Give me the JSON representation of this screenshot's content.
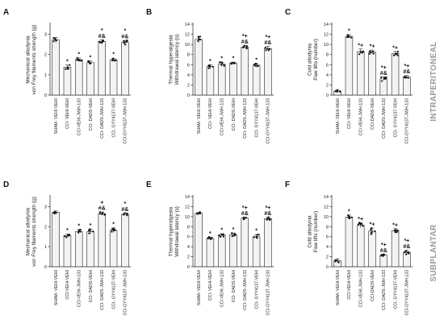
{
  "row_labels": [
    "INTRAPERITONEAL",
    "SUBPLANTAR"
  ],
  "chart_data": [
    {
      "panel": "A",
      "type": "bar",
      "ylabel": [
        "Mechanical allodynia",
        "von Frey filaments strength (g)"
      ],
      "ylim": [
        0,
        3.5
      ],
      "yticks": [
        0,
        1,
        2,
        3
      ],
      "categories": [
        "SHAM- VEHI-VEHI",
        "CCI- VEHI-VEHI",
        "CCI-VEHI-JWH-133",
        "CCI- DADS-VEHI",
        "CCI- DADS-JWH-133",
        "CCI- GYY4137-VEHI",
        "CCI-GYY4137-JWH-133"
      ],
      "values": [
        2.72,
        1.38,
        1.75,
        1.6,
        2.65,
        1.75,
        2.6
      ],
      "errors": [
        0.12,
        0.1,
        0.08,
        0.08,
        0.08,
        0.07,
        0.1
      ],
      "annotations": [
        "",
        "*",
        "*",
        "*",
        "* # &",
        "*",
        "* # &"
      ]
    },
    {
      "panel": "B",
      "type": "bar",
      "ylabel": [
        "Thermal hyperalgesia",
        "Withdrawal latency (s)"
      ],
      "ylim": [
        0,
        14
      ],
      "yticks": [
        0,
        2,
        4,
        6,
        8,
        10,
        12,
        14
      ],
      "categories": [
        "SHAM- VEHI-VEHI",
        "CCI- VEHI-VEHI",
        "CCI-VEHI-JWH-133",
        "CCI- DADS-VEHI",
        "CCI- DADS-JWH-133",
        "CCI- GYY4137-VEHI",
        "CCI-GYY4137-JWH-133"
      ],
      "values": [
        11.0,
        5.6,
        6.1,
        6.3,
        9.5,
        5.9,
        9.2
      ],
      "errors": [
        0.6,
        0.4,
        0.4,
        0.2,
        0.3,
        0.3,
        0.4
      ],
      "annotations": [
        "",
        "*",
        "*",
        "*",
        "*+ # &",
        "*",
        "*+ # &"
      ]
    },
    {
      "panel": "C",
      "type": "bar",
      "ylabel": [
        "Cold allodynia",
        "Paw lifts (number)"
      ],
      "ylim": [
        0,
        14
      ],
      "yticks": [
        0,
        2,
        4,
        6,
        8,
        10,
        12,
        14
      ],
      "categories": [
        "SHAM- VEHI-VEHI",
        "CCI- VEHI-VEHI",
        "CCI-VEHI-JWH-133",
        "CCI-DADS-VEHI",
        "CCI- DADS-JWH-133",
        "CCI- GYY4137-VEHI",
        "CCI-GYY4137-JWH-133"
      ],
      "values": [
        0.8,
        11.6,
        8.6,
        8.5,
        3.2,
        8.2,
        3.6
      ],
      "errors": [
        0.3,
        0.3,
        0.5,
        0.4,
        0.4,
        0.4,
        0.3
      ],
      "annotations": [
        "",
        "*",
        "*+",
        "*+",
        "*+ # &",
        "*+",
        "*+ # &"
      ]
    },
    {
      "panel": "D",
      "type": "bar",
      "ylabel": [
        "Mechanical allodynia",
        "von Frey filaments strength (g)"
      ],
      "ylim": [
        0,
        3.5
      ],
      "yticks": [
        0,
        1,
        2,
        3
      ],
      "categories": [
        "SHAM- VEHI-VEHI",
        "CCI-VEHI-VEHI",
        "CCI-VEHI-JWH-133",
        "CCI- DADS-VEHI",
        "CCI- DADS-JWH-133",
        "CCI- GYY4137-VEHI",
        "CCI-GYY4137-JWH-133"
      ],
      "values": [
        2.72,
        1.55,
        1.75,
        1.75,
        2.65,
        1.82,
        2.62
      ],
      "errors": [
        0.06,
        0.08,
        0.1,
        0.12,
        0.08,
        0.12,
        0.06
      ],
      "annotations": [
        "",
        "*",
        "*",
        "*",
        "+ # &",
        "*",
        "* # &"
      ]
    },
    {
      "panel": "E",
      "type": "bar",
      "ylabel": [
        "Thermal hyperalgesia",
        "Withdrawal latency (s)"
      ],
      "ylim": [
        0,
        14
      ],
      "yticks": [
        0,
        2,
        4,
        6,
        8,
        10,
        12,
        14
      ],
      "categories": [
        "SHAM- VEHI-VEHI",
        "CCI- VEHI-VEHI",
        "CCI-VEHI-JWH-133",
        "CCI- DADS-VEHI",
        "CCI- DADS-JWH-133",
        "CCI- GYY4137-VEHI",
        "CCI-GYY4137-JWH-133"
      ],
      "values": [
        10.7,
        5.6,
        6.3,
        6.4,
        9.7,
        6.0,
        9.6
      ],
      "errors": [
        0.2,
        0.3,
        0.3,
        0.3,
        0.2,
        0.4,
        0.3
      ],
      "annotations": [
        "",
        "*",
        "*",
        "*",
        "*+ # &",
        "*",
        "*+ # &"
      ]
    },
    {
      "panel": "F",
      "type": "bar",
      "ylabel": [
        "Cold allodynia",
        "Paw lifts (number)"
      ],
      "ylim": [
        0,
        14
      ],
      "yticks": [
        0,
        2,
        4,
        6,
        8,
        10,
        12,
        14
      ],
      "categories": [
        "SHAM- VEHI-VEHI",
        "CCI-VEHI-VEHI",
        "CCI-VEHI-JWH-133",
        "CCI-DADS-VEHI",
        "CCI- DADS-JWH-133",
        "CCI- GYY4137-VEHI",
        "CCI-GYY4137-JWH-133"
      ],
      "values": [
        1.2,
        9.9,
        8.3,
        7.1,
        2.3,
        7.2,
        2.9
      ],
      "errors": [
        0.4,
        0.4,
        0.5,
        0.6,
        0.2,
        0.4,
        0.4
      ],
      "annotations": [
        "",
        "*",
        "*+",
        "*+",
        "*+ # &",
        "*+",
        "*+ # &"
      ]
    }
  ]
}
